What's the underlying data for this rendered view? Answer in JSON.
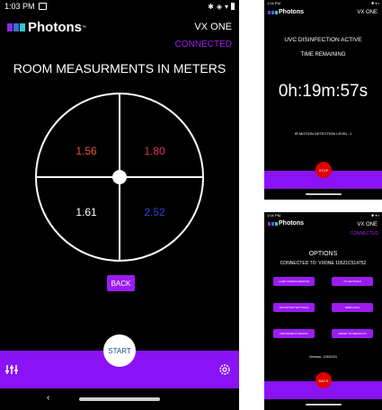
{
  "main": {
    "status": {
      "time": "1:03 PM"
    },
    "brand": "Photons",
    "tm": "™",
    "device": "VX ONE",
    "connection": "CONNECTED",
    "heading": "ROOM MEASURMENTS IN METERS",
    "measurements": {
      "tl": "1.56",
      "tr": "1.80",
      "bl": "1.61",
      "br": "2.52"
    },
    "back_label": "BACK",
    "start_label": "START",
    "colors": {
      "tl": "#e8534a",
      "tr": "#e0325a",
      "bl": "#ffffff",
      "br": "#3240d8",
      "accent": "#8a12f5"
    }
  },
  "disinfection": {
    "brand": "Photons",
    "device": "VX ONE",
    "title": "UVC DISINFECTION ACTIVE",
    "subtitle": "TIME REMAINING",
    "timer": "0h:19m:57s",
    "motion": "IR MOTION DETECTION LEVEL: 1",
    "stop_label": "STOP"
  },
  "options": {
    "brand": "Photons",
    "device": "VX ONE",
    "connection": "CONNECTED",
    "title": "OPTIONS",
    "connected_to": "CONNECTED TO: VXONE 10521C514752",
    "buttons": [
      "LAMP CONFIGURATION",
      "TX SETTINGS",
      "IVR MOTOR SETTINGS",
      "DEBUGING",
      "RECONNECT DEVICE",
      "RESET TO DEFAULTS"
    ],
    "version": "Version: 2/3/2021",
    "back_label": "BACK"
  }
}
